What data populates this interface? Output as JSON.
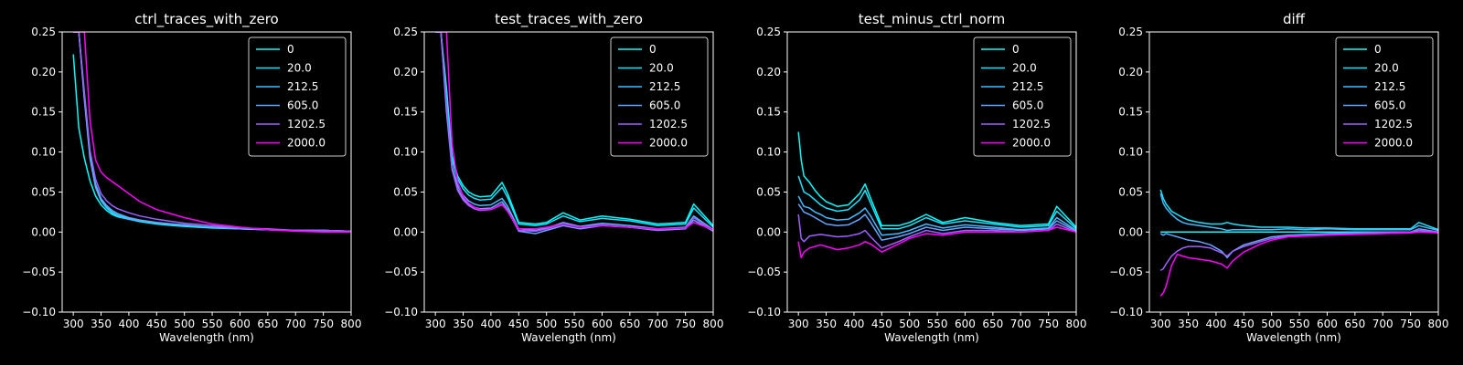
{
  "figure": {
    "background": "#000000",
    "foreground": "#ffffff"
  },
  "chart_data": [
    {
      "type": "line",
      "title": "ctrl_traces_with_zero",
      "xlabel": "Wavelength (nm)",
      "ylabel": "",
      "xlim": [
        280,
        800
      ],
      "ylim": [
        -0.1,
        0.25
      ],
      "xticks": [
        "300",
        "350",
        "400",
        "450",
        "500",
        "550",
        "600",
        "650",
        "700",
        "750",
        "800"
      ],
      "yticks": [
        "−0.10",
        "−0.05",
        "0.00",
        "0.05",
        "0.10",
        "0.15",
        "0.20",
        "0.25"
      ],
      "grid": false,
      "legend": "top-right",
      "x": [
        300,
        310,
        320,
        330,
        340,
        350,
        360,
        370,
        380,
        400,
        420,
        450,
        480,
        500,
        550,
        600,
        650,
        700,
        750,
        800
      ],
      "series": [
        {
          "name": "0",
          "color": "#00ffff",
          "values": [
            0.222,
            0.13,
            0.092,
            0.064,
            0.045,
            0.034,
            0.027,
            0.022,
            0.019,
            0.016,
            0.013,
            0.01,
            0.008,
            0.007,
            0.005,
            0.004,
            0.003,
            0.002,
            0.002,
            0.001
          ]
        },
        {
          "name": "20.0",
          "color": "#1ae5ff",
          "values": [
            0.25,
            0.25,
            0.168,
            0.095,
            0.058,
            0.04,
            0.031,
            0.025,
            0.021,
            0.017,
            0.014,
            0.011,
            0.009,
            0.008,
            0.006,
            0.004,
            0.003,
            0.002,
            0.002,
            0.001
          ]
        },
        {
          "name": "212.5",
          "color": "#44bbff",
          "values": [
            0.25,
            0.25,
            0.165,
            0.092,
            0.056,
            0.039,
            0.03,
            0.024,
            0.02,
            0.016,
            0.014,
            0.011,
            0.009,
            0.008,
            0.006,
            0.004,
            0.003,
            0.002,
            0.002,
            0.001
          ]
        },
        {
          "name": "605.0",
          "color": "#66a4ff",
          "values": [
            0.25,
            0.25,
            0.17,
            0.098,
            0.06,
            0.042,
            0.033,
            0.027,
            0.023,
            0.018,
            0.015,
            0.012,
            0.01,
            0.009,
            0.006,
            0.005,
            0.003,
            0.002,
            0.002,
            0.001
          ]
        },
        {
          "name": "1202.5",
          "color": "#9f60ff",
          "values": [
            0.25,
            0.25,
            0.175,
            0.102,
            0.066,
            0.048,
            0.039,
            0.033,
            0.029,
            0.024,
            0.02,
            0.016,
            0.013,
            0.011,
            0.008,
            0.005,
            0.004,
            0.002,
            0.002,
            0.001
          ]
        },
        {
          "name": "2000.0",
          "color": "#ff00ff",
          "values": [
            0.25,
            0.25,
            0.25,
            0.14,
            0.09,
            0.075,
            0.068,
            0.063,
            0.058,
            0.048,
            0.038,
            0.028,
            0.022,
            0.018,
            0.01,
            0.006,
            0.003,
            0.001,
            0.0,
            0.0
          ]
        }
      ]
    },
    {
      "type": "line",
      "title": "test_traces_with_zero",
      "xlabel": "Wavelength (nm)",
      "ylabel": "",
      "xlim": [
        280,
        800
      ],
      "ylim": [
        -0.1,
        0.25
      ],
      "xticks": [
        "300",
        "350",
        "400",
        "450",
        "500",
        "550",
        "600",
        "650",
        "700",
        "750",
        "800"
      ],
      "yticks": [
        "−0.10",
        "−0.05",
        "0.00",
        "0.05",
        "0.10",
        "0.15",
        "0.20",
        "0.25"
      ],
      "grid": false,
      "legend": "top-right",
      "x": [
        300,
        310,
        320,
        330,
        340,
        350,
        360,
        370,
        380,
        400,
        420,
        430,
        450,
        480,
        500,
        530,
        560,
        600,
        650,
        700,
        750,
        765,
        800
      ],
      "series": [
        {
          "name": "0",
          "color": "#00ffff",
          "values": [
            0.25,
            0.25,
            0.18,
            0.095,
            0.07,
            0.058,
            0.05,
            0.046,
            0.044,
            0.045,
            0.062,
            0.048,
            0.012,
            0.01,
            0.012,
            0.024,
            0.015,
            0.02,
            0.016,
            0.01,
            0.012,
            0.035,
            0.008
          ]
        },
        {
          "name": "20.0",
          "color": "#1ae5ff",
          "values": [
            0.25,
            0.25,
            0.17,
            0.09,
            0.066,
            0.054,
            0.046,
            0.042,
            0.04,
            0.041,
            0.056,
            0.043,
            0.01,
            0.008,
            0.01,
            0.02,
            0.013,
            0.017,
            0.014,
            0.008,
            0.01,
            0.03,
            0.006
          ]
        },
        {
          "name": "212.5",
          "color": "#44bbff",
          "values": [
            0.25,
            0.25,
            0.16,
            0.082,
            0.058,
            0.046,
            0.039,
            0.035,
            0.033,
            0.034,
            0.042,
            0.032,
            0.004,
            0.002,
            0.005,
            0.012,
            0.007,
            0.011,
            0.008,
            0.004,
            0.006,
            0.02,
            0.003
          ]
        },
        {
          "name": "605.0",
          "color": "#66a4ff",
          "values": [
            0.25,
            0.25,
            0.15,
            0.078,
            0.054,
            0.042,
            0.035,
            0.031,
            0.029,
            0.03,
            0.038,
            0.028,
            0.001,
            -0.002,
            0.002,
            0.008,
            0.004,
            0.008,
            0.006,
            0.002,
            0.004,
            0.015,
            0.001
          ]
        },
        {
          "name": "1202.5",
          "color": "#9f60ff",
          "values": [
            0.25,
            0.25,
            0.16,
            0.078,
            0.052,
            0.04,
            0.033,
            0.029,
            0.027,
            0.028,
            0.035,
            0.026,
            0.002,
            0.001,
            0.004,
            0.01,
            0.006,
            0.009,
            0.006,
            0.003,
            0.005,
            0.018,
            0.002
          ]
        },
        {
          "name": "2000.0",
          "color": "#ff00ff",
          "values": [
            0.25,
            0.25,
            0.25,
            0.11,
            0.062,
            0.045,
            0.036,
            0.031,
            0.028,
            0.028,
            0.034,
            0.026,
            0.004,
            0.004,
            0.006,
            0.01,
            0.006,
            0.008,
            0.006,
            0.004,
            0.005,
            0.012,
            0.003
          ]
        }
      ]
    },
    {
      "type": "line",
      "title": "test_minus_ctrl_norm",
      "xlabel": "Wavelength (nm)",
      "ylabel": "",
      "xlim": [
        280,
        800
      ],
      "ylim": [
        -0.1,
        0.25
      ],
      "xticks": [
        "300",
        "350",
        "400",
        "450",
        "500",
        "550",
        "600",
        "650",
        "700",
        "750",
        "800"
      ],
      "yticks": [
        "−0.10",
        "−0.05",
        "0.00",
        "0.05",
        "0.10",
        "0.15",
        "0.20",
        "0.25"
      ],
      "grid": false,
      "legend": "top-right",
      "x": [
        300,
        305,
        310,
        320,
        330,
        340,
        350,
        370,
        390,
        410,
        420,
        430,
        450,
        480,
        500,
        530,
        560,
        600,
        650,
        700,
        750,
        765,
        800
      ],
      "series": [
        {
          "name": "0",
          "color": "#00ffff",
          "values": [
            0.125,
            0.09,
            0.07,
            0.062,
            0.052,
            0.044,
            0.038,
            0.032,
            0.034,
            0.048,
            0.06,
            0.042,
            0.008,
            0.008,
            0.012,
            0.022,
            0.012,
            0.018,
            0.012,
            0.008,
            0.01,
            0.032,
            0.006
          ]
        },
        {
          "name": "20.0",
          "color": "#1ae5ff",
          "values": [
            0.07,
            0.06,
            0.05,
            0.046,
            0.04,
            0.034,
            0.03,
            0.026,
            0.028,
            0.04,
            0.052,
            0.036,
            0.004,
            0.004,
            0.008,
            0.018,
            0.01,
            0.014,
            0.01,
            0.006,
            0.008,
            0.026,
            0.004
          ]
        },
        {
          "name": "212.5",
          "color": "#44bbff",
          "values": [
            0.045,
            0.038,
            0.032,
            0.03,
            0.025,
            0.022,
            0.018,
            0.015,
            0.016,
            0.024,
            0.03,
            0.02,
            -0.004,
            -0.002,
            0.002,
            0.01,
            0.005,
            0.009,
            0.006,
            0.003,
            0.005,
            0.018,
            0.002
          ]
        },
        {
          "name": "605.0",
          "color": "#66a4ff",
          "values": [
            0.035,
            0.03,
            0.025,
            0.022,
            0.018,
            0.014,
            0.01,
            0.008,
            0.009,
            0.016,
            0.022,
            0.012,
            -0.01,
            -0.006,
            -0.002,
            0.006,
            0.002,
            0.006,
            0.004,
            0.002,
            0.004,
            0.014,
            0.001
          ]
        },
        {
          "name": "1202.5",
          "color": "#9f60ff",
          "values": [
            0.022,
            -0.008,
            -0.012,
            -0.005,
            -0.004,
            -0.003,
            -0.004,
            -0.006,
            -0.005,
            -0.002,
            0.002,
            -0.006,
            -0.02,
            -0.012,
            -0.006,
            0.002,
            -0.002,
            0.002,
            0.002,
            0.0,
            0.002,
            0.01,
            0.0
          ]
        },
        {
          "name": "2000.0",
          "color": "#ff00ff",
          "values": [
            -0.012,
            -0.032,
            -0.025,
            -0.02,
            -0.018,
            -0.016,
            -0.018,
            -0.022,
            -0.02,
            -0.016,
            -0.012,
            -0.015,
            -0.025,
            -0.015,
            -0.008,
            -0.002,
            -0.004,
            0.0,
            0.0,
            0.0,
            0.002,
            0.006,
            0.0
          ]
        }
      ]
    },
    {
      "type": "line",
      "title": "diff",
      "xlabel": "Wavelength (nm)",
      "ylabel": "",
      "xlim": [
        280,
        800
      ],
      "ylim": [
        -0.1,
        0.25
      ],
      "xticks": [
        "300",
        "350",
        "400",
        "450",
        "500",
        "550",
        "600",
        "650",
        "700",
        "750",
        "800"
      ],
      "yticks": [
        "−0.10",
        "−0.05",
        "0.00",
        "0.05",
        "0.10",
        "0.15",
        "0.20",
        "0.25"
      ],
      "grid": false,
      "legend": "top-right",
      "x": [
        300,
        305,
        310,
        320,
        330,
        340,
        350,
        370,
        390,
        410,
        420,
        430,
        450,
        480,
        500,
        530,
        560,
        600,
        650,
        700,
        750,
        765,
        800
      ],
      "series": [
        {
          "name": "0",
          "color": "#00ffff",
          "values": [
            0.0,
            0.0,
            0.0,
            0.0,
            0.0,
            0.0,
            0.0,
            0.0,
            0.0,
            0.0,
            0.0,
            0.0,
            0.0,
            0.0,
            0.0,
            0.0,
            0.0,
            0.0,
            0.0,
            0.0,
            0.0,
            0.0,
            0.0
          ]
        },
        {
          "name": "20.0",
          "color": "#1ae5ff",
          "values": [
            0.053,
            0.042,
            0.035,
            0.026,
            0.022,
            0.018,
            0.015,
            0.012,
            0.01,
            0.01,
            0.012,
            0.01,
            0.008,
            0.006,
            0.006,
            0.006,
            0.005,
            0.005,
            0.004,
            0.004,
            0.004,
            0.012,
            0.003
          ]
        },
        {
          "name": "212.5",
          "color": "#44bbff",
          "values": [
            0.048,
            0.036,
            0.03,
            0.022,
            0.016,
            0.012,
            0.01,
            0.008,
            0.006,
            0.004,
            0.002,
            0.003,
            0.003,
            0.003,
            0.003,
            0.004,
            0.003,
            0.004,
            0.003,
            0.003,
            0.003,
            0.008,
            0.002
          ]
        },
        {
          "name": "605.0",
          "color": "#66a4ff",
          "values": [
            -0.002,
            -0.004,
            -0.002,
            -0.004,
            -0.006,
            -0.008,
            -0.01,
            -0.012,
            -0.016,
            -0.024,
            -0.032,
            -0.024,
            -0.016,
            -0.01,
            -0.006,
            -0.004,
            -0.003,
            -0.002,
            -0.001,
            0.0,
            0.0,
            0.004,
            0.0
          ]
        },
        {
          "name": "1202.5",
          "color": "#9f60ff",
          "values": [
            -0.048,
            -0.046,
            -0.04,
            -0.03,
            -0.024,
            -0.02,
            -0.018,
            -0.018,
            -0.02,
            -0.026,
            -0.03,
            -0.024,
            -0.018,
            -0.012,
            -0.008,
            -0.005,
            -0.004,
            -0.003,
            -0.002,
            -0.001,
            0.0,
            0.002,
            0.0
          ]
        },
        {
          "name": "2000.0",
          "color": "#ff00ff",
          "values": [
            -0.08,
            -0.076,
            -0.068,
            -0.042,
            -0.028,
            -0.03,
            -0.032,
            -0.034,
            -0.036,
            -0.04,
            -0.045,
            -0.036,
            -0.025,
            -0.015,
            -0.01,
            -0.006,
            -0.005,
            -0.004,
            -0.003,
            -0.002,
            -0.001,
            0.0,
            -0.001
          ]
        }
      ]
    }
  ]
}
